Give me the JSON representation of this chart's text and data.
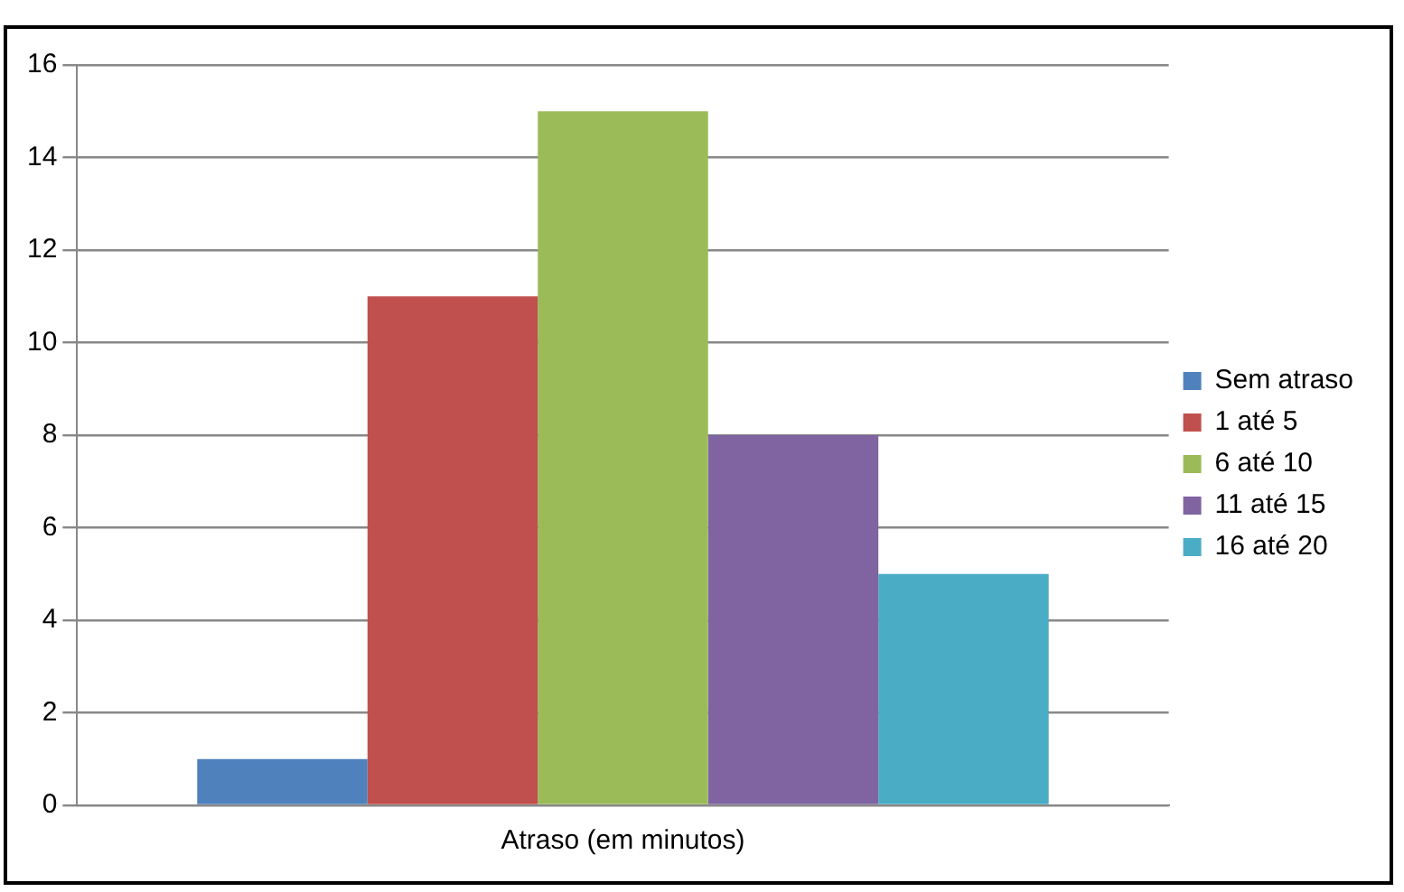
{
  "chart_data": {
    "type": "bar",
    "categories": [
      "Atraso (em minutos)"
    ],
    "series": [
      {
        "name": "Sem atraso",
        "color": "#4f81bd",
        "values": [
          1
        ]
      },
      {
        "name": "1 até 5",
        "color": "#c0504d",
        "values": [
          11
        ]
      },
      {
        "name": "6 até 10",
        "color": "#9bbb59",
        "values": [
          15
        ]
      },
      {
        "name": "11 até 15",
        "color": "#8064a2",
        "values": [
          8
        ]
      },
      {
        "name": "16 até 20",
        "color": "#4bacc6",
        "values": [
          5
        ]
      }
    ],
    "ylim": [
      0,
      16
    ],
    "yticks": [
      0,
      2,
      4,
      6,
      8,
      10,
      12,
      14,
      16
    ],
    "grid": "y",
    "legend": "right"
  }
}
